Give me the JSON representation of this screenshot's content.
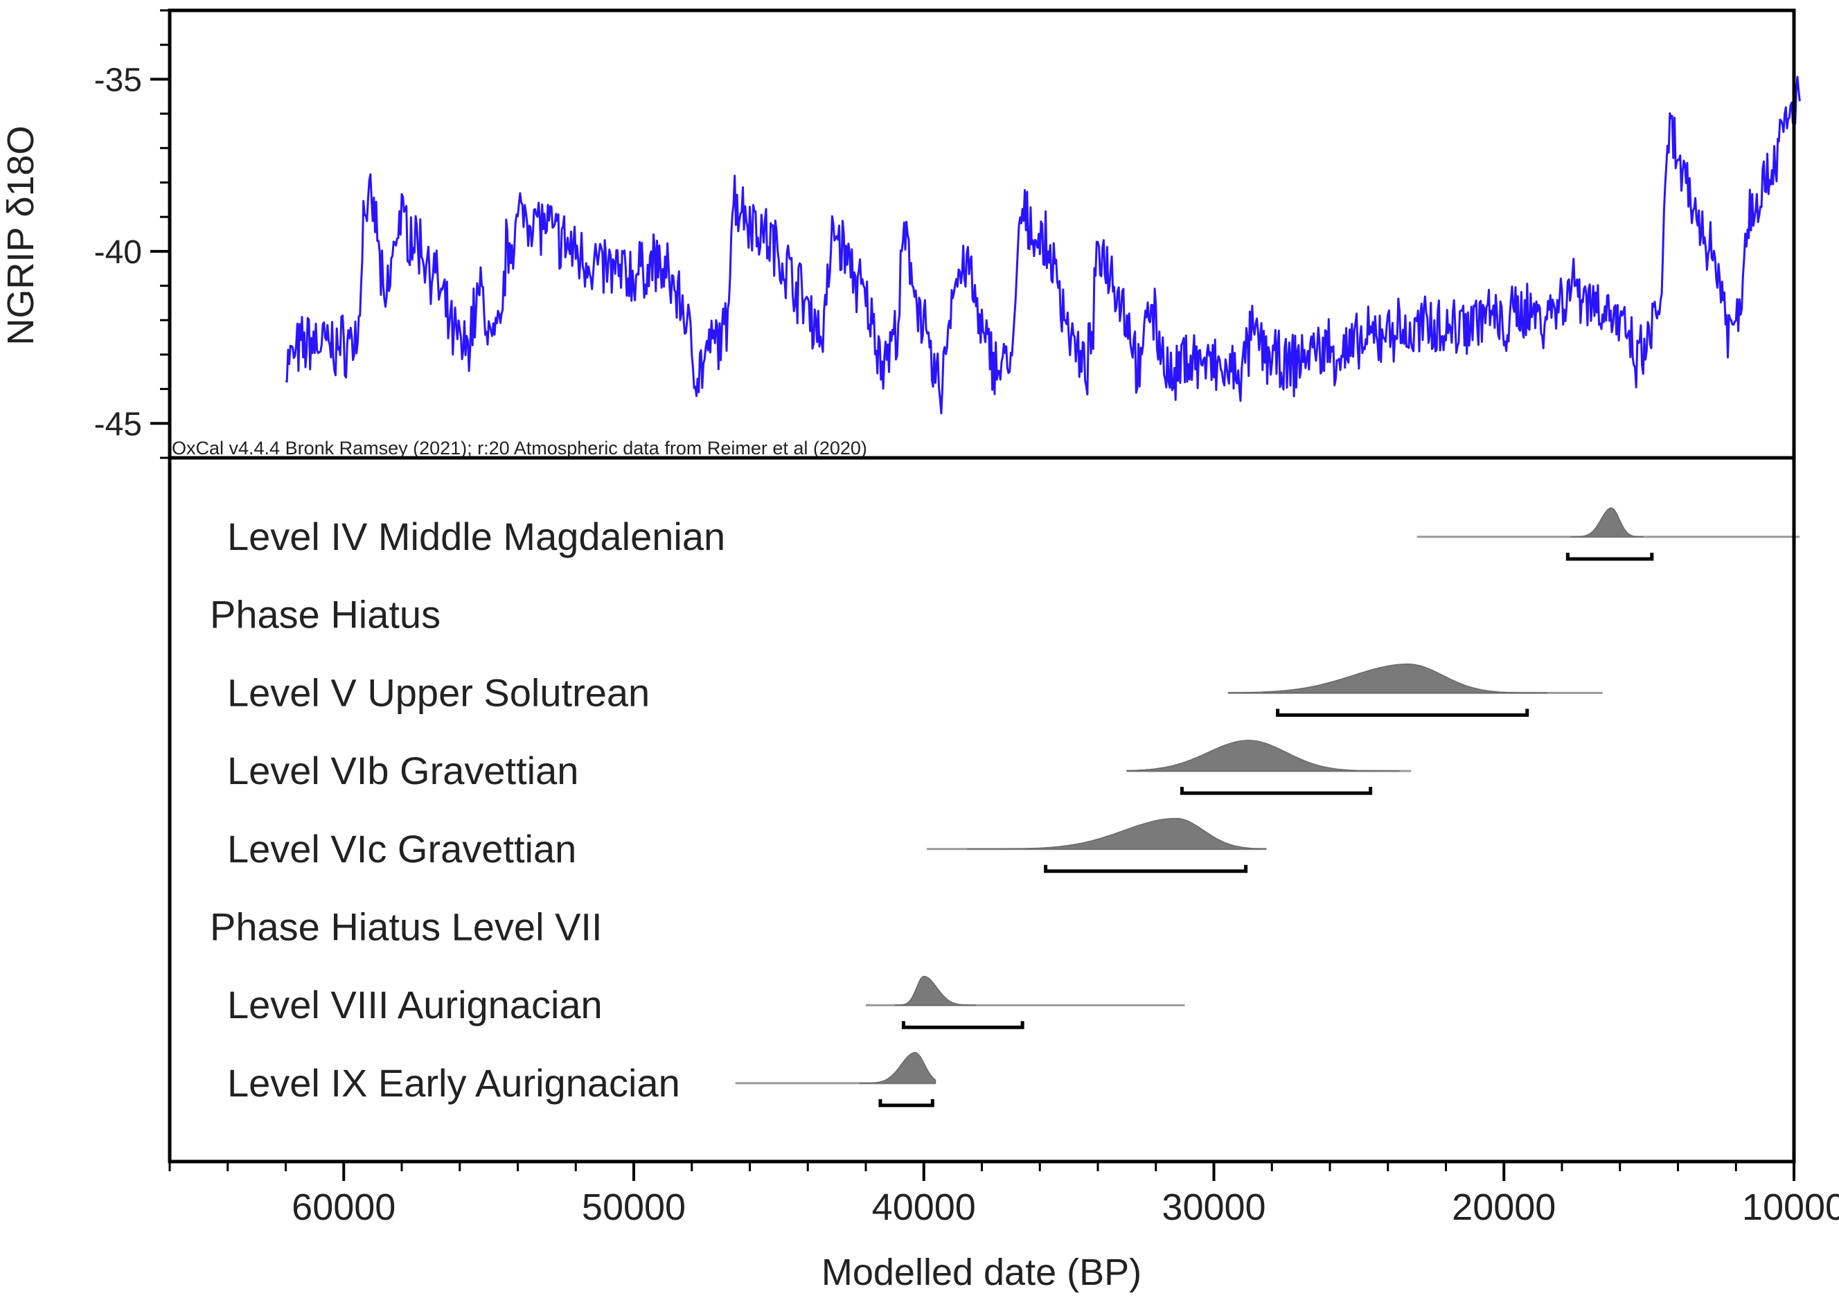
{
  "chart_data": {
    "type": "oxcal-multiplot",
    "credit": "OxCal v4.4.4 Bronk Ramsey (2021); r:20 Atmospheric data from Reimer et al (2020)",
    "x_axis": {
      "label": "Modelled date (BP)",
      "range": [
        66000,
        10000
      ],
      "ticks": [
        60000,
        50000,
        40000,
        30000,
        20000,
        10000
      ]
    },
    "climate_series": {
      "name": "NGRIP δ18O",
      "ylabel": "NGRIP δ18O",
      "ylim": [
        -46,
        -33
      ],
      "yticks": [
        -35,
        -40,
        -45
      ],
      "color": "#2a14ff",
      "x_start": 62000,
      "x_end": 9800,
      "anchors": [
        [
          62000,
          -43.3
        ],
        [
          61200,
          -42.6
        ],
        [
          60200,
          -42.8
        ],
        [
          59500,
          -42.5
        ],
        [
          59300,
          -38.6
        ],
        [
          58900,
          -39.0
        ],
        [
          58600,
          -41.8
        ],
        [
          58100,
          -39.0
        ],
        [
          57400,
          -39.8
        ],
        [
          56900,
          -40.6
        ],
        [
          56300,
          -42.3
        ],
        [
          55800,
          -42.9
        ],
        [
          55300,
          -41.1
        ],
        [
          54900,
          -42.7
        ],
        [
          54600,
          -42.4
        ],
        [
          54400,
          -40.0
        ],
        [
          53800,
          -38.8
        ],
        [
          53000,
          -39.3
        ],
        [
          52200,
          -39.9
        ],
        [
          51500,
          -40.3
        ],
        [
          50700,
          -40.6
        ],
        [
          49900,
          -40.7
        ],
        [
          49300,
          -40.3
        ],
        [
          48700,
          -40.9
        ],
        [
          48300,
          -41.6
        ],
        [
          47800,
          -43.6
        ],
        [
          47200,
          -42.6
        ],
        [
          46800,
          -42.4
        ],
        [
          46600,
          -38.4
        ],
        [
          46000,
          -39.0
        ],
        [
          45200,
          -39.8
        ],
        [
          44500,
          -40.8
        ],
        [
          44000,
          -41.6
        ],
        [
          43500,
          -42.5
        ],
        [
          43100,
          -39.3
        ],
        [
          42500,
          -40.5
        ],
        [
          42000,
          -41.5
        ],
        [
          41400,
          -43.2
        ],
        [
          40900,
          -42.3
        ],
        [
          40700,
          -39.6
        ],
        [
          40300,
          -41.0
        ],
        [
          39700,
          -43.5
        ],
        [
          39400,
          -44.0
        ],
        [
          39000,
          -41.0
        ],
        [
          38500,
          -40.3
        ],
        [
          38000,
          -42.5
        ],
        [
          37400,
          -43.4
        ],
        [
          36900,
          -43.0
        ],
        [
          36700,
          -39.0
        ],
        [
          36200,
          -39.4
        ],
        [
          35600,
          -40.2
        ],
        [
          35000,
          -42.2
        ],
        [
          34500,
          -43.6
        ],
        [
          34200,
          -42.7
        ],
        [
          34000,
          -39.8
        ],
        [
          33500,
          -40.6
        ],
        [
          32900,
          -42.2
        ],
        [
          32500,
          -43.9
        ],
        [
          32300,
          -41.2
        ],
        [
          31900,
          -42.5
        ],
        [
          31400,
          -44.0
        ],
        [
          31000,
          -43.0
        ],
        [
          30200,
          -43.3
        ],
        [
          29500,
          -43.6
        ],
        [
          29000,
          -43.5
        ],
        [
          28700,
          -42.4
        ],
        [
          28100,
          -43.0
        ],
        [
          27500,
          -43.5
        ],
        [
          26900,
          -43.0
        ],
        [
          26200,
          -42.8
        ],
        [
          25600,
          -43.0
        ],
        [
          25100,
          -42.8
        ],
        [
          24600,
          -42.6
        ],
        [
          23900,
          -42.2
        ],
        [
          23200,
          -42.5
        ],
        [
          22500,
          -42.0
        ],
        [
          21900,
          -42.3
        ],
        [
          21300,
          -42.0
        ],
        [
          20600,
          -41.8
        ],
        [
          20000,
          -42.3
        ],
        [
          19400,
          -41.6
        ],
        [
          18700,
          -41.9
        ],
        [
          18100,
          -41.5
        ],
        [
          17600,
          -40.9
        ],
        [
          17000,
          -41.4
        ],
        [
          16400,
          -41.7
        ],
        [
          15900,
          -42.3
        ],
        [
          15400,
          -43.3
        ],
        [
          15000,
          -42.6
        ],
        [
          14600,
          -41.4
        ],
        [
          14300,
          -36.4
        ],
        [
          14000,
          -37.4
        ],
        [
          13600,
          -38.6
        ],
        [
          13100,
          -39.4
        ],
        [
          12600,
          -40.6
        ],
        [
          12200,
          -42.4
        ],
        [
          11900,
          -41.8
        ],
        [
          11600,
          -39.0
        ],
        [
          11300,
          -38.4
        ],
        [
          10800,
          -37.6
        ],
        [
          10300,
          -36.4
        ],
        [
          9800,
          -35.3
        ]
      ]
    },
    "phases": [
      {
        "label": "Level IV Middle Magdalenian",
        "indent": true,
        "prior": [
          23000,
          9800
        ],
        "peak": 16300,
        "left_sd": 350,
        "right_sd": 280,
        "height": 0.8,
        "range95": [
          17800,
          14900
        ]
      },
      {
        "label": "Phase Hiatus",
        "indent": false
      },
      {
        "label": "Level V Upper Solutrean",
        "indent": true,
        "prior": [
          29500,
          16600
        ],
        "peak": 23300,
        "left_sd": 1900,
        "right_sd": 1200,
        "height": 0.8,
        "range95": [
          27800,
          19200
        ]
      },
      {
        "label": "Level VIb Gravettian",
        "indent": true,
        "prior": [
          33000,
          23200
        ],
        "peak": 28800,
        "left_sd": 1400,
        "right_sd": 1300,
        "height": 0.85,
        "range95": [
          31100,
          24600
        ]
      },
      {
        "label": "Level VIc Gravettian",
        "indent": true,
        "prior": [
          39900,
          28200
        ],
        "peak": 31300,
        "left_sd": 1800,
        "right_sd": 950,
        "height": 0.85,
        "range95": [
          35800,
          28900
        ]
      },
      {
        "label": "Phase Hiatus Level VII",
        "indent": false
      },
      {
        "label": "Level VIII Aurignacian",
        "indent": true,
        "prior": [
          42000,
          31000
        ],
        "peak": 40000,
        "left_sd": 250,
        "right_sd": 450,
        "height": 0.8,
        "range95": [
          40700,
          36600
        ]
      },
      {
        "label": "Level IX Early Aurignacian",
        "indent": true,
        "prior": [
          46500,
          39600
        ],
        "peak": 40300,
        "left_sd": 480,
        "right_sd": 330,
        "height": 0.85,
        "range95": [
          41500,
          39700
        ]
      }
    ]
  }
}
